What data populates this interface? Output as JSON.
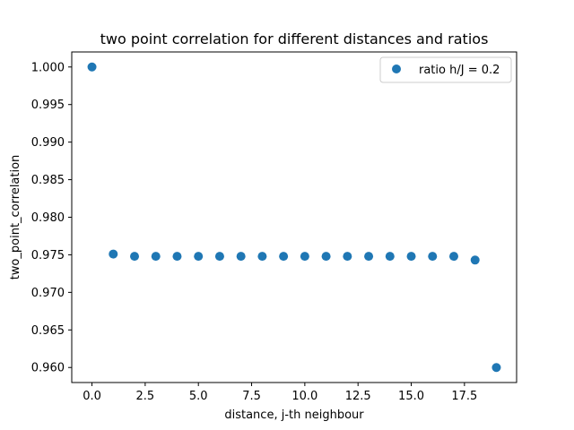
{
  "chart_data": {
    "type": "scatter",
    "title": "two point correlation for different distances and ratios",
    "xlabel": "distance, j-th neighbour",
    "ylabel": "two_point_correlation",
    "xlim": [
      -0.95,
      19.95
    ],
    "ylim": [
      0.958,
      1.002
    ],
    "xticks": [
      0.0,
      2.5,
      5.0,
      7.5,
      10.0,
      12.5,
      15.0,
      17.5
    ],
    "xtick_labels": [
      "0.0",
      "2.5",
      "5.0",
      "7.5",
      "10.0",
      "12.5",
      "15.0",
      "17.5"
    ],
    "yticks": [
      0.96,
      0.965,
      0.97,
      0.975,
      0.98,
      0.985,
      0.99,
      0.995,
      1.0
    ],
    "ytick_labels": [
      "0.960",
      "0.965",
      "0.970",
      "0.975",
      "0.980",
      "0.985",
      "0.990",
      "0.995",
      "1.000"
    ],
    "grid": false,
    "legend_position": "top-right",
    "series": [
      {
        "name": "ratio h/J = 0.2",
        "color": "#1f77b4",
        "x": [
          0,
          1,
          2,
          3,
          4,
          5,
          6,
          7,
          8,
          9,
          10,
          11,
          12,
          13,
          14,
          15,
          16,
          17,
          18,
          19
        ],
        "y": [
          1.0,
          0.9751,
          0.9748,
          0.9748,
          0.9748,
          0.9748,
          0.9748,
          0.9748,
          0.9748,
          0.9748,
          0.9748,
          0.9748,
          0.9748,
          0.9748,
          0.9748,
          0.9748,
          0.9748,
          0.9748,
          0.9743,
          0.96
        ]
      }
    ]
  }
}
